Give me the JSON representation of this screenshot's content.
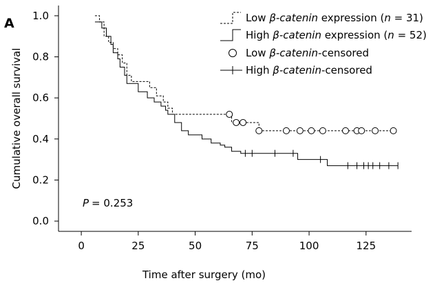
{
  "panel_label": "A",
  "annotation": {
    "p_label": "P",
    "p_value": "= 0.253"
  },
  "legend": [
    {
      "id": "low-expr",
      "kind": "dashed-step",
      "prefix": "Low ",
      "italic": "β-catenin",
      "suffix": " expression (",
      "n_italic": "n",
      "n_value": " = 31)"
    },
    {
      "id": "high-expr",
      "kind": "solid-step",
      "prefix": "High ",
      "italic": "β-catenin",
      "suffix": " expression (",
      "n_italic": "n",
      "n_value": " = 52)"
    },
    {
      "id": "low-censored",
      "kind": "circle",
      "prefix": "Low ",
      "italic": "β-catenin",
      "suffix": "-censored"
    },
    {
      "id": "high-censored",
      "kind": "plus",
      "prefix": "High ",
      "italic": "β-catenin",
      "suffix": "-censored"
    }
  ],
  "chart_data": {
    "type": "line",
    "subtype": "kaplan-meier step",
    "xlabel": "Time after surgery (mo)",
    "ylabel": "Cumulative overall survival",
    "xlim": [
      -10,
      145
    ],
    "ylim": [
      -0.05,
      1.05
    ],
    "xticks": [
      0,
      25,
      50,
      75,
      100,
      125
    ],
    "yticks": [
      0.0,
      0.2,
      0.4,
      0.6,
      0.8,
      1.0
    ],
    "ytick_labels": [
      "0.0",
      "0.2",
      "0.4",
      "0.6",
      "0.8",
      "1.0"
    ],
    "grid": false,
    "legend_position": "top-right",
    "series": [
      {
        "name": "Low β-catenin expression (n = 31)",
        "style": "dashed",
        "start": [
          6,
          1.0
        ],
        "steps": [
          [
            8,
            0.97
          ],
          [
            10,
            0.9
          ],
          [
            12,
            0.87
          ],
          [
            14,
            0.84
          ],
          [
            16,
            0.81
          ],
          [
            18,
            0.77
          ],
          [
            20,
            0.71
          ],
          [
            22,
            0.68
          ],
          [
            30,
            0.65
          ],
          [
            33,
            0.61
          ],
          [
            36,
            0.58
          ],
          [
            38,
            0.55
          ],
          [
            40,
            0.52
          ],
          [
            66,
            0.48
          ],
          [
            78,
            0.44
          ]
        ],
        "end_x": 137,
        "censored_marker": "circle",
        "censored": [
          [
            65,
            0.52
          ],
          [
            68,
            0.48
          ],
          [
            71,
            0.48
          ],
          [
            78,
            0.44
          ],
          [
            90,
            0.44
          ],
          [
            96,
            0.44
          ],
          [
            101,
            0.44
          ],
          [
            106,
            0.44
          ],
          [
            116,
            0.44
          ],
          [
            121,
            0.44
          ],
          [
            123,
            0.44
          ],
          [
            129,
            0.44
          ],
          [
            137,
            0.44
          ]
        ]
      },
      {
        "name": "High β-catenin expression (n = 52)",
        "style": "solid",
        "start": [
          6,
          0.97
        ],
        "steps": [
          [
            9,
            0.94
          ],
          [
            11,
            0.9
          ],
          [
            13,
            0.86
          ],
          [
            14,
            0.82
          ],
          [
            16,
            0.79
          ],
          [
            17,
            0.75
          ],
          [
            19,
            0.71
          ],
          [
            20,
            0.67
          ],
          [
            25,
            0.63
          ],
          [
            29,
            0.6
          ],
          [
            32,
            0.58
          ],
          [
            35,
            0.56
          ],
          [
            37,
            0.54
          ],
          [
            38,
            0.52
          ],
          [
            41,
            0.48
          ],
          [
            44,
            0.44
          ],
          [
            47,
            0.42
          ],
          [
            53,
            0.4
          ],
          [
            57,
            0.38
          ],
          [
            61,
            0.37
          ],
          [
            63,
            0.36
          ],
          [
            66,
            0.34
          ],
          [
            70,
            0.33
          ],
          [
            95,
            0.3
          ],
          [
            108,
            0.27
          ]
        ],
        "end_x": 139,
        "censored_marker": "plus",
        "censored": [
          [
            72,
            0.33
          ],
          [
            75,
            0.33
          ],
          [
            85,
            0.33
          ],
          [
            93,
            0.33
          ],
          [
            105,
            0.3
          ],
          [
            117,
            0.27
          ],
          [
            121,
            0.27
          ],
          [
            124,
            0.27
          ],
          [
            126,
            0.27
          ],
          [
            128,
            0.27
          ],
          [
            131,
            0.27
          ],
          [
            135,
            0.27
          ],
          [
            139,
            0.27
          ]
        ]
      }
    ]
  }
}
